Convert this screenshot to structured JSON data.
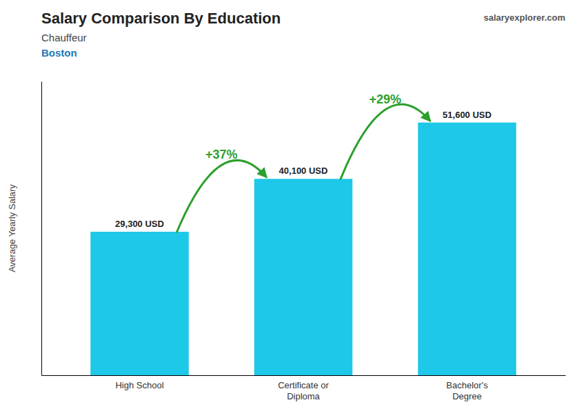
{
  "chart_data": {
    "type": "bar",
    "title": "Salary Comparison By Education",
    "subtitle": [
      "Chauffeur",
      "Boston"
    ],
    "source": "salaryexplorer.com",
    "ylabel": "Average Yearly Salary",
    "categories": [
      "High School",
      "Certificate or\nDiploma",
      "Bachelor's\nDegree"
    ],
    "values": [
      29300,
      40100,
      51600
    ],
    "value_labels": [
      "29,300 USD",
      "40,100 USD",
      "51,600 USD"
    ],
    "data_labels": true,
    "color": "#1EC8E8",
    "ylim": [
      0,
      60000
    ],
    "yticks": [],
    "tick_labels": "x",
    "grid": false,
    "annotations": [
      "+37%",
      "+29%"
    ]
  }
}
